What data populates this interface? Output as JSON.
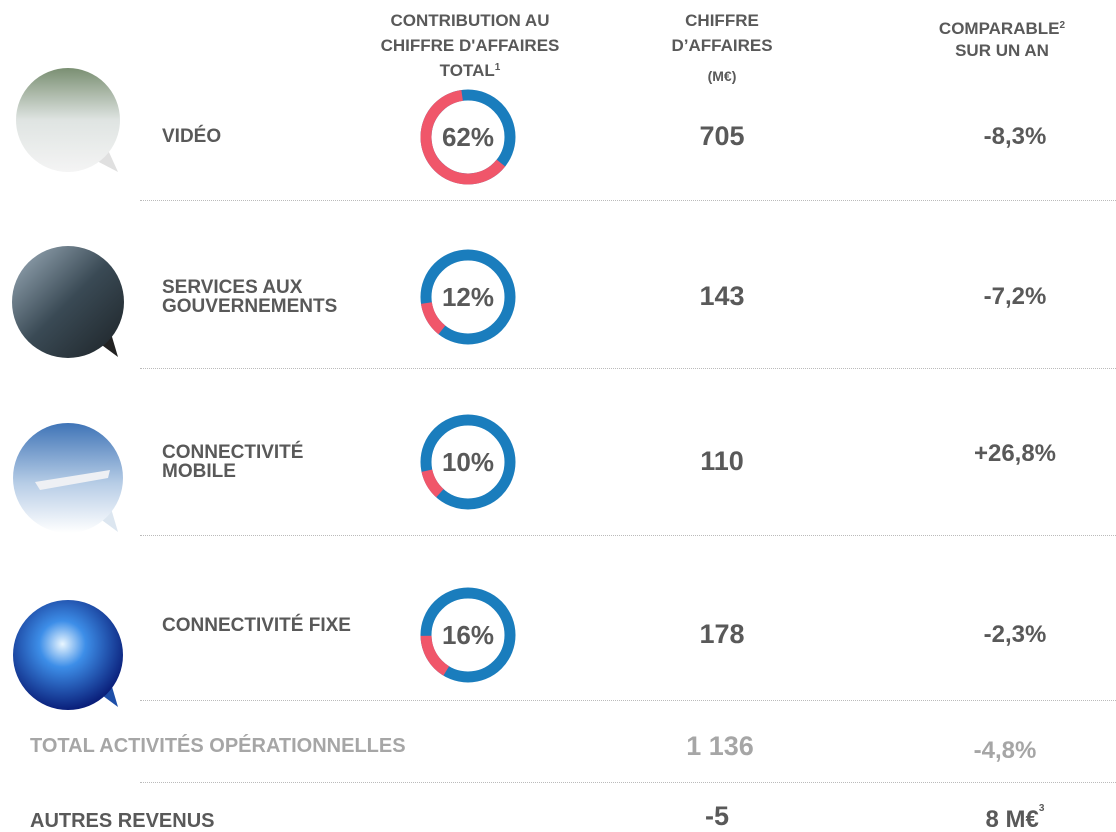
{
  "header": {
    "contribution": {
      "text": "CONTRIBUTION AU CHIFFRE D'AFFAIRES TOTAL",
      "note": "1"
    },
    "revenue": {
      "text": "CHIFFRE D’AFFAIRES",
      "unit": "(M€)"
    },
    "comparable": {
      "text": "COMPARABLE",
      "note": "2",
      "subtext": "SUR UN AN"
    }
  },
  "rows": [
    {
      "label": "VIDÉO",
      "share": 62,
      "share_label": "62%",
      "revenue": "705",
      "comparable": "-8,3%"
    },
    {
      "label": "SERVICES AUX GOUVERNEMENTS",
      "share": 12,
      "share_label": "12%",
      "revenue": "143",
      "comparable": "-7,2%"
    },
    {
      "label": "CONNECTIVITÉ MOBILE",
      "share": 10,
      "share_label": "10%",
      "revenue": "110",
      "comparable": "+26,8%"
    },
    {
      "label": "CONNECTIVITÉ FIXE",
      "share": 16,
      "share_label": "16%",
      "revenue": "178",
      "comparable": "-2,3%"
    }
  ],
  "total": {
    "label": "TOTAL ACTIVITÉS OPÉRATIONNELLES",
    "revenue": "1 136",
    "comparable": "-4,8%"
  },
  "other": {
    "label": "AUTRES REVENUS",
    "revenue": "-5",
    "comparable": "8 M€",
    "note": "3"
  }
}
